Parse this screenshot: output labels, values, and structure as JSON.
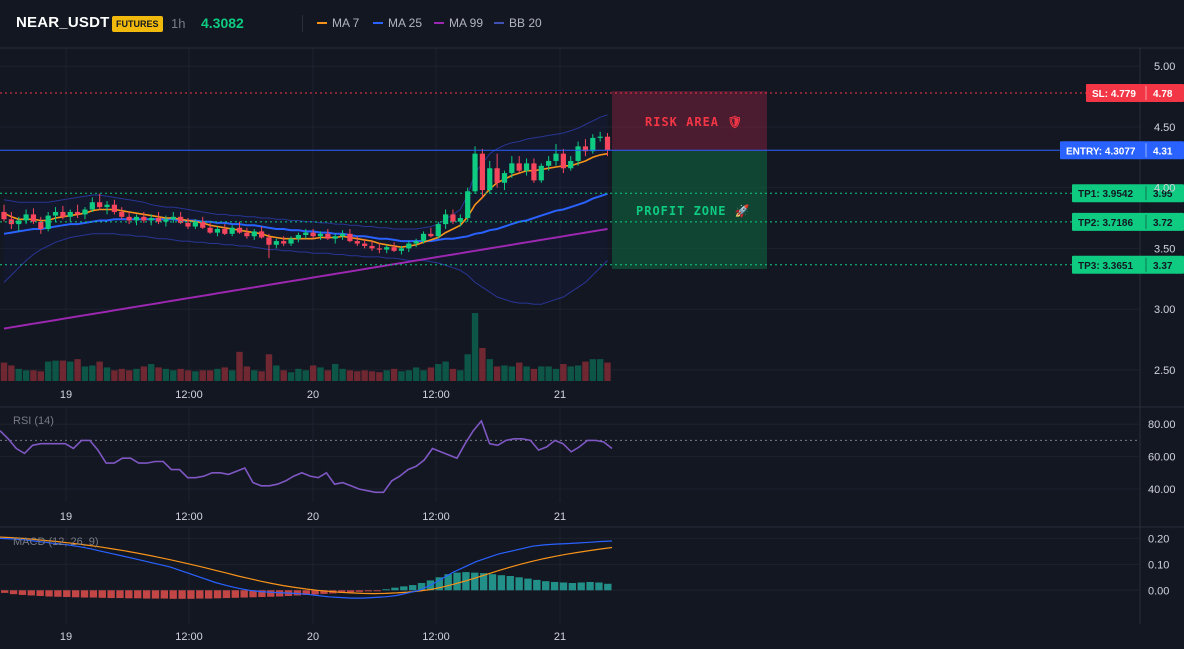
{
  "header": {
    "symbol": "NEAR_USDT",
    "badge": "FUTURES",
    "timeframe": "1h",
    "price": "4.3082",
    "legend": [
      {
        "label": "MA 7",
        "color": "#f7931a"
      },
      {
        "label": "MA 25",
        "color": "#2962ff"
      },
      {
        "label": "MA 99",
        "color": "#9c27b0"
      },
      {
        "label": "BB 20",
        "color": "#283593"
      }
    ]
  },
  "trade": {
    "sl": {
      "label": "SL: 4.779",
      "axis": "4.78",
      "value": 4.779,
      "color": "#f23645"
    },
    "entry": {
      "label": "ENTRY: 4.3077",
      "axis": "4.31",
      "value": 4.3077,
      "color": "#2962ff"
    },
    "tps": [
      {
        "label": "TP1: 3.9542",
        "axis": "3.95",
        "value": 3.9542
      },
      {
        "label": "TP2: 3.7186",
        "axis": "3.72",
        "value": 3.7186
      },
      {
        "label": "TP3: 3.3651",
        "axis": "3.37",
        "value": 3.3651
      }
    ],
    "risk_label": "RISK AREA 🛡",
    "profit_label": "PROFIT ZONE 🚀"
  },
  "chart_data": [
    {
      "type": "candlestick",
      "title": "NEAR_USDT 1h",
      "ylim": [
        2.4,
        5.15
      ],
      "y_ticks": [
        "5.00",
        "4.50",
        "4.00",
        "3.50",
        "3.00",
        "2.50"
      ],
      "x_ticks": [
        "19",
        "12:00",
        "20",
        "12:00",
        "21"
      ],
      "candles": [
        [
          3.8,
          3.86,
          3.72,
          3.74
        ],
        [
          3.74,
          3.8,
          3.66,
          3.7
        ],
        [
          3.7,
          3.76,
          3.64,
          3.73
        ],
        [
          3.73,
          3.82,
          3.7,
          3.78
        ],
        [
          3.78,
          3.83,
          3.7,
          3.72
        ],
        [
          3.72,
          3.76,
          3.62,
          3.66
        ],
        [
          3.66,
          3.8,
          3.64,
          3.77
        ],
        [
          3.77,
          3.84,
          3.72,
          3.8
        ],
        [
          3.8,
          3.85,
          3.74,
          3.76
        ],
        [
          3.76,
          3.82,
          3.72,
          3.8
        ],
        [
          3.8,
          3.86,
          3.75,
          3.78
        ],
        [
          3.78,
          3.84,
          3.74,
          3.82
        ],
        [
          3.82,
          3.92,
          3.8,
          3.88
        ],
        [
          3.88,
          3.95,
          3.82,
          3.84
        ],
        [
          3.84,
          3.89,
          3.78,
          3.86
        ],
        [
          3.86,
          3.9,
          3.78,
          3.8
        ],
        [
          3.8,
          3.84,
          3.74,
          3.76
        ],
        [
          3.76,
          3.8,
          3.7,
          3.73
        ],
        [
          3.73,
          3.78,
          3.69,
          3.76
        ],
        [
          3.76,
          3.8,
          3.71,
          3.73
        ],
        [
          3.73,
          3.78,
          3.69,
          3.75
        ],
        [
          3.75,
          3.8,
          3.7,
          3.72
        ],
        [
          3.72,
          3.77,
          3.68,
          3.74
        ],
        [
          3.74,
          3.8,
          3.71,
          3.76
        ],
        [
          3.76,
          3.8,
          3.7,
          3.71
        ],
        [
          3.71,
          3.75,
          3.66,
          3.68
        ],
        [
          3.68,
          3.74,
          3.66,
          3.72
        ],
        [
          3.72,
          3.76,
          3.66,
          3.67
        ],
        [
          3.67,
          3.71,
          3.62,
          3.63
        ],
        [
          3.63,
          3.68,
          3.6,
          3.66
        ],
        [
          3.66,
          3.7,
          3.61,
          3.62
        ],
        [
          3.62,
          3.69,
          3.6,
          3.67
        ],
        [
          3.67,
          3.72,
          3.62,
          3.63
        ],
        [
          3.63,
          3.67,
          3.58,
          3.6
        ],
        [
          3.6,
          3.66,
          3.57,
          3.64
        ],
        [
          3.64,
          3.68,
          3.58,
          3.59
        ],
        [
          3.59,
          3.62,
          3.42,
          3.53
        ],
        [
          3.53,
          3.58,
          3.5,
          3.56
        ],
        [
          3.56,
          3.6,
          3.52,
          3.54
        ],
        [
          3.54,
          3.6,
          3.52,
          3.58
        ],
        [
          3.58,
          3.63,
          3.55,
          3.61
        ],
        [
          3.61,
          3.66,
          3.58,
          3.63
        ],
        [
          3.63,
          3.66,
          3.58,
          3.6
        ],
        [
          3.6,
          3.64,
          3.57,
          3.62
        ],
        [
          3.62,
          3.66,
          3.57,
          3.58
        ],
        [
          3.58,
          3.62,
          3.54,
          3.6
        ],
        [
          3.6,
          3.65,
          3.57,
          3.62
        ],
        [
          3.62,
          3.66,
          3.55,
          3.56
        ],
        [
          3.56,
          3.6,
          3.52,
          3.54
        ],
        [
          3.54,
          3.58,
          3.5,
          3.52
        ],
        [
          3.52,
          3.56,
          3.48,
          3.5
        ],
        [
          3.5,
          3.54,
          3.46,
          3.49
        ],
        [
          3.49,
          3.53,
          3.46,
          3.51
        ],
        [
          3.51,
          3.55,
          3.47,
          3.48
        ],
        [
          3.48,
          3.52,
          3.45,
          3.5
        ],
        [
          3.5,
          3.56,
          3.47,
          3.54
        ],
        [
          3.54,
          3.58,
          3.51,
          3.56
        ],
        [
          3.56,
          3.64,
          3.54,
          3.62
        ],
        [
          3.62,
          3.67,
          3.59,
          3.6
        ],
        [
          3.6,
          3.72,
          3.58,
          3.7
        ],
        [
          3.7,
          3.82,
          3.66,
          3.78
        ],
        [
          3.78,
          3.82,
          3.7,
          3.72
        ],
        [
          3.72,
          3.78,
          3.68,
          3.75
        ],
        [
          3.75,
          4.0,
          3.72,
          3.97
        ],
        [
          3.97,
          4.34,
          3.95,
          4.28
        ],
        [
          4.28,
          4.32,
          3.92,
          3.98
        ],
        [
          3.98,
          4.22,
          3.95,
          4.16
        ],
        [
          4.16,
          4.28,
          4.0,
          4.04
        ],
        [
          4.04,
          4.14,
          3.98,
          4.12
        ],
        [
          4.12,
          4.26,
          4.08,
          4.2
        ],
        [
          4.2,
          4.26,
          4.12,
          4.14
        ],
        [
          4.14,
          4.24,
          4.1,
          4.2
        ],
        [
          4.2,
          4.24,
          4.04,
          4.06
        ],
        [
          4.06,
          4.2,
          4.04,
          4.18
        ],
        [
          4.18,
          4.26,
          4.14,
          4.22
        ],
        [
          4.22,
          4.36,
          4.18,
          4.28
        ],
        [
          4.28,
          4.32,
          4.12,
          4.16
        ],
        [
          4.16,
          4.26,
          4.14,
          4.22
        ],
        [
          4.22,
          4.38,
          4.18,
          4.34
        ],
        [
          4.34,
          4.4,
          4.26,
          4.3
        ],
        [
          4.3,
          4.44,
          4.28,
          4.41
        ],
        [
          4.41,
          4.46,
          4.38,
          4.42
        ],
        [
          4.42,
          4.45,
          4.26,
          4.31
        ]
      ],
      "ma7": [
        3.79,
        3.76,
        3.74,
        3.74,
        3.74,
        3.73,
        3.73,
        3.75,
        3.76,
        3.77,
        3.78,
        3.79,
        3.81,
        3.82,
        3.82,
        3.82,
        3.81,
        3.8,
        3.79,
        3.78,
        3.77,
        3.76,
        3.75,
        3.75,
        3.74,
        3.73,
        3.72,
        3.71,
        3.69,
        3.68,
        3.67,
        3.66,
        3.65,
        3.64,
        3.63,
        3.62,
        3.6,
        3.59,
        3.58,
        3.58,
        3.58,
        3.58,
        3.58,
        3.59,
        3.59,
        3.59,
        3.6,
        3.59,
        3.58,
        3.57,
        3.56,
        3.54,
        3.53,
        3.52,
        3.51,
        3.52,
        3.53,
        3.55,
        3.57,
        3.59,
        3.63,
        3.66,
        3.69,
        3.76,
        3.86,
        3.92,
        3.99,
        4.04,
        4.07,
        4.1,
        4.12,
        4.14,
        4.14,
        4.15,
        4.16,
        4.17,
        4.18,
        4.18,
        4.2,
        4.22,
        4.25,
        4.27,
        4.28
      ],
      "ma25": [
        3.62,
        3.63,
        3.64,
        3.65,
        3.66,
        3.66,
        3.67,
        3.68,
        3.69,
        3.7,
        3.7,
        3.71,
        3.72,
        3.73,
        3.73,
        3.74,
        3.74,
        3.74,
        3.74,
        3.74,
        3.74,
        3.74,
        3.74,
        3.74,
        3.73,
        3.73,
        3.73,
        3.72,
        3.72,
        3.71,
        3.71,
        3.7,
        3.7,
        3.69,
        3.69,
        3.68,
        3.67,
        3.66,
        3.66,
        3.65,
        3.65,
        3.64,
        3.64,
        3.63,
        3.63,
        3.62,
        3.62,
        3.61,
        3.6,
        3.6,
        3.59,
        3.58,
        3.58,
        3.57,
        3.56,
        3.56,
        3.56,
        3.56,
        3.56,
        3.57,
        3.58,
        3.58,
        3.59,
        3.6,
        3.62,
        3.63,
        3.65,
        3.66,
        3.68,
        3.7,
        3.72,
        3.73,
        3.75,
        3.77,
        3.79,
        3.81,
        3.82,
        3.84,
        3.86,
        3.88,
        3.91,
        3.93,
        3.95
      ],
      "ma99": [
        2.84,
        2.85,
        2.86,
        2.87,
        2.88,
        2.89,
        2.9,
        2.91,
        2.92,
        2.93,
        2.94,
        2.95,
        2.96,
        2.97,
        2.98,
        2.99,
        3.0,
        3.01,
        3.02,
        3.03,
        3.04,
        3.05,
        3.06,
        3.07,
        3.08,
        3.09,
        3.1,
        3.11,
        3.12,
        3.13,
        3.14,
        3.15,
        3.16,
        3.17,
        3.18,
        3.19,
        3.2,
        3.21,
        3.22,
        3.23,
        3.24,
        3.25,
        3.26,
        3.27,
        3.28,
        3.29,
        3.3,
        3.31,
        3.32,
        3.33,
        3.34,
        3.35,
        3.36,
        3.37,
        3.38,
        3.39,
        3.4,
        3.41,
        3.42,
        3.43,
        3.44,
        3.45,
        3.46,
        3.47,
        3.48,
        3.49,
        3.5,
        3.51,
        3.52,
        3.53,
        3.54,
        3.55,
        3.56,
        3.57,
        3.58,
        3.59,
        3.6,
        3.61,
        3.62,
        3.63,
        3.64,
        3.65,
        3.66
      ],
      "bb_upper": [
        3.9,
        3.89,
        3.88,
        3.88,
        3.88,
        3.88,
        3.88,
        3.89,
        3.9,
        3.91,
        3.92,
        3.93,
        3.94,
        3.94,
        3.93,
        3.92,
        3.91,
        3.9,
        3.89,
        3.88,
        3.86,
        3.85,
        3.84,
        3.84,
        3.83,
        3.82,
        3.81,
        3.8,
        3.79,
        3.78,
        3.78,
        3.77,
        3.77,
        3.76,
        3.76,
        3.75,
        3.75,
        3.74,
        3.74,
        3.73,
        3.73,
        3.72,
        3.72,
        3.71,
        3.71,
        3.7,
        3.7,
        3.69,
        3.69,
        3.68,
        3.68,
        3.67,
        3.67,
        3.66,
        3.66,
        3.66,
        3.66,
        3.67,
        3.68,
        3.7,
        3.74,
        3.78,
        3.82,
        3.94,
        4.12,
        4.2,
        4.28,
        4.32,
        4.35,
        4.37,
        4.38,
        4.4,
        4.41,
        4.42,
        4.43,
        4.44,
        4.45,
        4.47,
        4.49,
        4.52,
        4.55,
        4.58,
        4.6
      ],
      "bb_lower": [
        3.22,
        3.28,
        3.34,
        3.4,
        3.45,
        3.49,
        3.52,
        3.55,
        3.57,
        3.59,
        3.6,
        3.61,
        3.62,
        3.62,
        3.62,
        3.62,
        3.61,
        3.61,
        3.6,
        3.6,
        3.59,
        3.58,
        3.58,
        3.57,
        3.56,
        3.56,
        3.55,
        3.55,
        3.54,
        3.54,
        3.53,
        3.53,
        3.52,
        3.52,
        3.51,
        3.5,
        3.49,
        3.49,
        3.48,
        3.48,
        3.47,
        3.47,
        3.46,
        3.46,
        3.46,
        3.45,
        3.45,
        3.44,
        3.44,
        3.43,
        3.43,
        3.43,
        3.42,
        3.42,
        3.41,
        3.4,
        3.4,
        3.4,
        3.39,
        3.38,
        3.36,
        3.34,
        3.32,
        3.28,
        3.22,
        3.18,
        3.14,
        3.1,
        3.08,
        3.06,
        3.05,
        3.05,
        3.04,
        3.04,
        3.06,
        3.08,
        3.1,
        3.14,
        3.18,
        3.22,
        3.28,
        3.34,
        3.4
      ],
      "volume": [
        0.38,
        0.32,
        0.25,
        0.22,
        0.22,
        0.2,
        0.4,
        0.42,
        0.42,
        0.4,
        0.45,
        0.3,
        0.32,
        0.4,
        0.28,
        0.22,
        0.25,
        0.22,
        0.25,
        0.3,
        0.35,
        0.28,
        0.25,
        0.22,
        0.25,
        0.22,
        0.2,
        0.22,
        0.22,
        0.25,
        0.28,
        0.22,
        0.6,
        0.3,
        0.22,
        0.2,
        0.55,
        0.32,
        0.22,
        0.18,
        0.25,
        0.22,
        0.32,
        0.28,
        0.22,
        0.35,
        0.25,
        0.22,
        0.2,
        0.22,
        0.2,
        0.18,
        0.22,
        0.25,
        0.2,
        0.22,
        0.28,
        0.22,
        0.28,
        0.35,
        0.4,
        0.25,
        0.22,
        0.55,
        1.4,
        0.68,
        0.45,
        0.3,
        0.32,
        0.3,
        0.38,
        0.3,
        0.25,
        0.3,
        0.3,
        0.25,
        0.35,
        0.3,
        0.32,
        0.4,
        0.45,
        0.45,
        0.38
      ]
    },
    {
      "type": "line",
      "title": "RSI (14)",
      "ylim": [
        32,
        90
      ],
      "y_ticks": [
        "80.00",
        "60.00",
        "40.00"
      ],
      "overbought": 70,
      "values": [
        76,
        71,
        65,
        62,
        67,
        68,
        68,
        68,
        68,
        65,
        70,
        70,
        64,
        56,
        56,
        59,
        59,
        56,
        56,
        57,
        57,
        52,
        52,
        47,
        47,
        48,
        50,
        50,
        49,
        51,
        53,
        44,
        42,
        42,
        43,
        45,
        48,
        50,
        48,
        47,
        50,
        43,
        44,
        42,
        40,
        39,
        38,
        38,
        45,
        48,
        52,
        54,
        58,
        65,
        63,
        61,
        59,
        68,
        76,
        82,
        68,
        67,
        70,
        71,
        71,
        70,
        64,
        66,
        70,
        68,
        63,
        66,
        70,
        70,
        69,
        65
      ]
    },
    {
      "type": "line",
      "title": "MACD (12, 26, 9)",
      "ylim": [
        -0.13,
        0.24
      ],
      "y_ticks": [
        "0.20",
        "0.10",
        "0.00"
      ],
      "macd": [
        0.2,
        0.198,
        0.195,
        0.19,
        0.185,
        0.18,
        0.175,
        0.168,
        0.16,
        0.15,
        0.14,
        0.13,
        0.12,
        0.11,
        0.1,
        0.09,
        0.075,
        0.06,
        0.045,
        0.03,
        0.018,
        0.008,
        0.0,
        -0.005,
        -0.008,
        -0.01,
        -0.012,
        -0.015,
        -0.02,
        -0.025,
        -0.028,
        -0.03,
        -0.03,
        -0.028,
        -0.025,
        -0.02,
        -0.01,
        0.0,
        0.02,
        0.045,
        0.07,
        0.09,
        0.11,
        0.125,
        0.14,
        0.15,
        0.16,
        0.17,
        0.175,
        0.178,
        0.18,
        0.182,
        0.185,
        0.188,
        0.19
      ],
      "signal": [
        0.205,
        0.203,
        0.2,
        0.196,
        0.192,
        0.188,
        0.183,
        0.178,
        0.172,
        0.166,
        0.159,
        0.152,
        0.144,
        0.136,
        0.127,
        0.118,
        0.108,
        0.098,
        0.088,
        0.077,
        0.066,
        0.055,
        0.045,
        0.035,
        0.026,
        0.018,
        0.011,
        0.005,
        0.0,
        -0.004,
        -0.008,
        -0.01,
        -0.012,
        -0.013,
        -0.012,
        -0.01,
        -0.007,
        -0.003,
        0.003,
        0.012,
        0.023,
        0.035,
        0.048,
        0.062,
        0.076,
        0.089,
        0.101,
        0.112,
        0.122,
        0.131,
        0.139,
        0.146,
        0.153,
        0.159,
        0.165
      ],
      "histogram": [
        -0.01,
        -0.015,
        -0.018,
        -0.02,
        -0.022,
        -0.024,
        -0.025,
        -0.026,
        -0.027,
        -0.028,
        -0.028,
        -0.029,
        -0.03,
        -0.03,
        -0.031,
        -0.031,
        -0.032,
        -0.032,
        -0.032,
        -0.033,
        -0.033,
        -0.033,
        -0.032,
        -0.032,
        -0.031,
        -0.03,
        -0.029,
        -0.028,
        -0.027,
        -0.026,
        -0.025,
        -0.024,
        -0.022,
        -0.02,
        -0.018,
        -0.016,
        -0.014,
        -0.012,
        -0.01,
        -0.008,
        -0.006,
        -0.004,
        -0.002,
        0.004,
        0.01,
        0.015,
        0.02,
        0.028,
        0.038,
        0.05,
        0.062,
        0.068,
        0.07,
        0.068,
        0.066,
        0.062,
        0.058,
        0.055,
        0.05,
        0.045,
        0.04,
        0.035,
        0.032,
        0.03,
        0.028,
        0.03,
        0.032,
        0.03,
        0.025
      ]
    }
  ],
  "axis": {
    "x_ticks": [
      "19",
      "12:00",
      "20",
      "12:00",
      "21"
    ]
  }
}
